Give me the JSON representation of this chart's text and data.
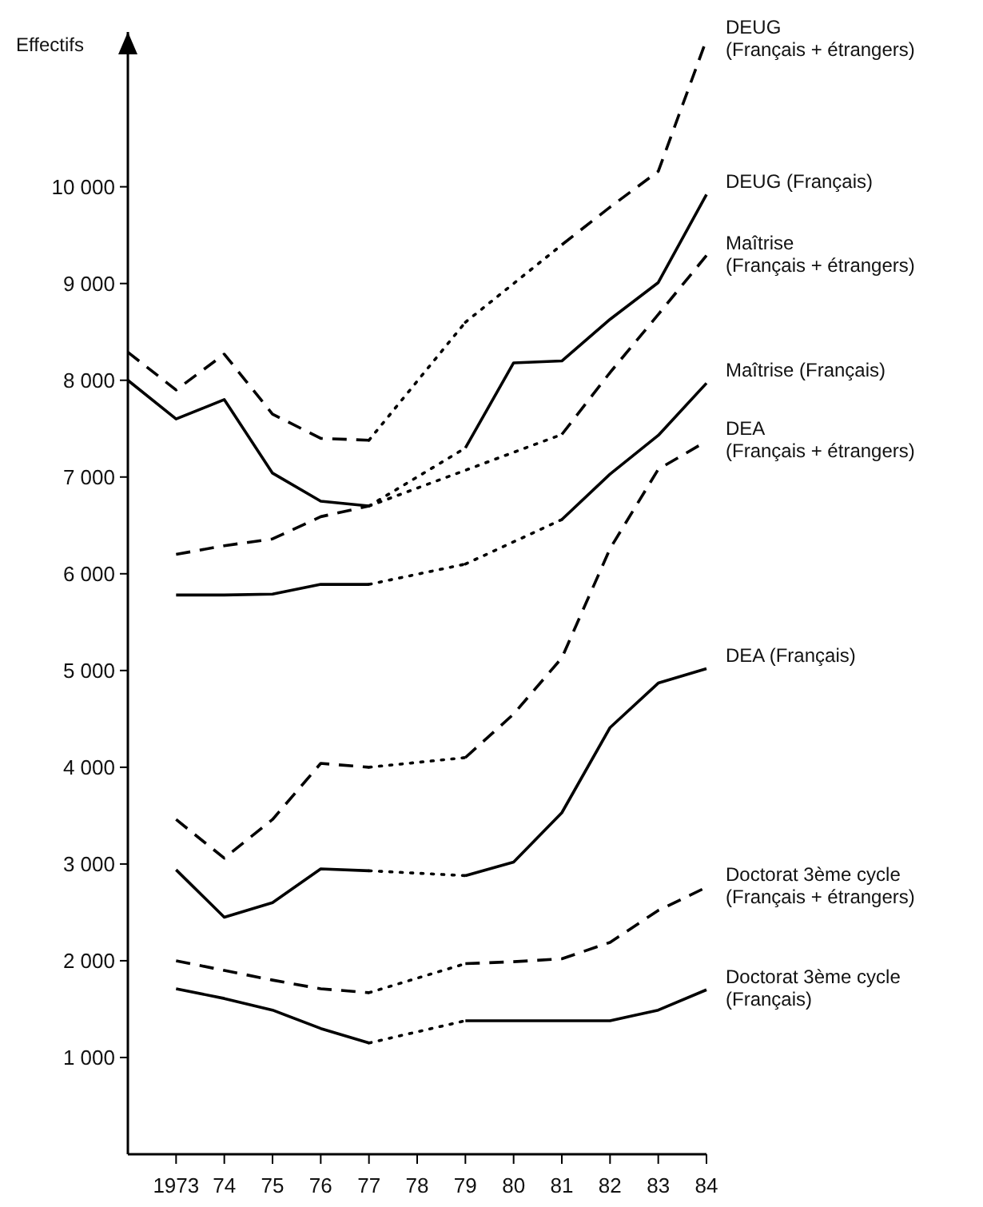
{
  "chart_data": {
    "type": "line",
    "ylabel": "Effectifs",
    "x": [
      1972,
      1973,
      1974,
      1975,
      1976,
      1977,
      1978,
      1979,
      1980,
      1981,
      1982,
      1983,
      1984
    ],
    "xlim": [
      1972,
      1984
    ],
    "xticks": [
      {
        "value": 1973,
        "label": "1973"
      },
      {
        "value": 1974,
        "label": "74"
      },
      {
        "value": 1975,
        "label": "75"
      },
      {
        "value": 1976,
        "label": "76"
      },
      {
        "value": 1977,
        "label": "77"
      },
      {
        "value": 1978,
        "label": "78"
      },
      {
        "value": 1979,
        "label": "79"
      },
      {
        "value": 1980,
        "label": "80"
      },
      {
        "value": 1981,
        "label": "81"
      },
      {
        "value": 1982,
        "label": "82"
      },
      {
        "value": 1983,
        "label": "83"
      },
      {
        "value": 1984,
        "label": "84"
      }
    ],
    "ylim": [
      0,
      11600
    ],
    "yticks": [
      {
        "value": 1000,
        "label": "1 000"
      },
      {
        "value": 2000,
        "label": "2 000"
      },
      {
        "value": 3000,
        "label": "3 000"
      },
      {
        "value": 4000,
        "label": "4 000"
      },
      {
        "value": 5000,
        "label": "5 000"
      },
      {
        "value": 6000,
        "label": "6 000"
      },
      {
        "value": 7000,
        "label": "7 000"
      },
      {
        "value": 8000,
        "label": "8 000"
      },
      {
        "value": 9000,
        "label": "9 000"
      },
      {
        "value": 10000,
        "label": "10 000"
      }
    ],
    "series": [
      {
        "name": "DEUG\n(Français + étrangers)",
        "color": "#000000",
        "line_style": "dashed",
        "values": [
          8290,
          7900,
          8270,
          7650,
          7400,
          7380,
          null,
          8600,
          null,
          9400,
          9790,
          10160,
          11520
        ]
      },
      {
        "name": "DEUG (Français)",
        "color": "#000000",
        "line_style": "solid",
        "values": [
          8000,
          7600,
          7800,
          7040,
          6750,
          6700,
          null,
          7300,
          8180,
          8200,
          8630,
          9010,
          9920
        ]
      },
      {
        "name": "Maîtrise\n(Français + étrangers)",
        "color": "#000000",
        "line_style": "dashed",
        "values": [
          null,
          6200,
          6290,
          6360,
          6590,
          6700,
          null,
          null,
          null,
          7440,
          8080,
          8680,
          9290
        ]
      },
      {
        "name": "Maîtrise (Français)",
        "color": "#000000",
        "line_style": "solid",
        "values": [
          null,
          5780,
          5780,
          5790,
          5890,
          5890,
          null,
          6100,
          null,
          6560,
          7030,
          7430,
          7970
        ]
      },
      {
        "name": "DEA\n(Français + étrangers)",
        "color": "#000000",
        "line_style": "dashed",
        "values": [
          null,
          3460,
          3060,
          3460,
          4040,
          4000,
          null,
          4100,
          4550,
          5130,
          6260,
          7080,
          7370
        ]
      },
      {
        "name": "DEA (Français)",
        "color": "#000000",
        "line_style": "solid",
        "values": [
          null,
          2940,
          2450,
          2600,
          2950,
          2930,
          null,
          2880,
          3020,
          3530,
          4410,
          4870,
          5020
        ]
      },
      {
        "name": "Doctorat 3ème cycle\n(Français + étrangers)",
        "color": "#000000",
        "line_style": "dashed",
        "values": [
          null,
          2000,
          1900,
          1800,
          1710,
          1670,
          null,
          1970,
          1990,
          2020,
          2190,
          2520,
          2760
        ]
      },
      {
        "name": "Doctorat 3ème cycle\n(Français)",
        "color": "#000000",
        "line_style": "solid",
        "values": [
          null,
          1710,
          1610,
          1490,
          1300,
          1150,
          null,
          1380,
          1380,
          1380,
          1380,
          1490,
          1700
        ]
      }
    ]
  }
}
